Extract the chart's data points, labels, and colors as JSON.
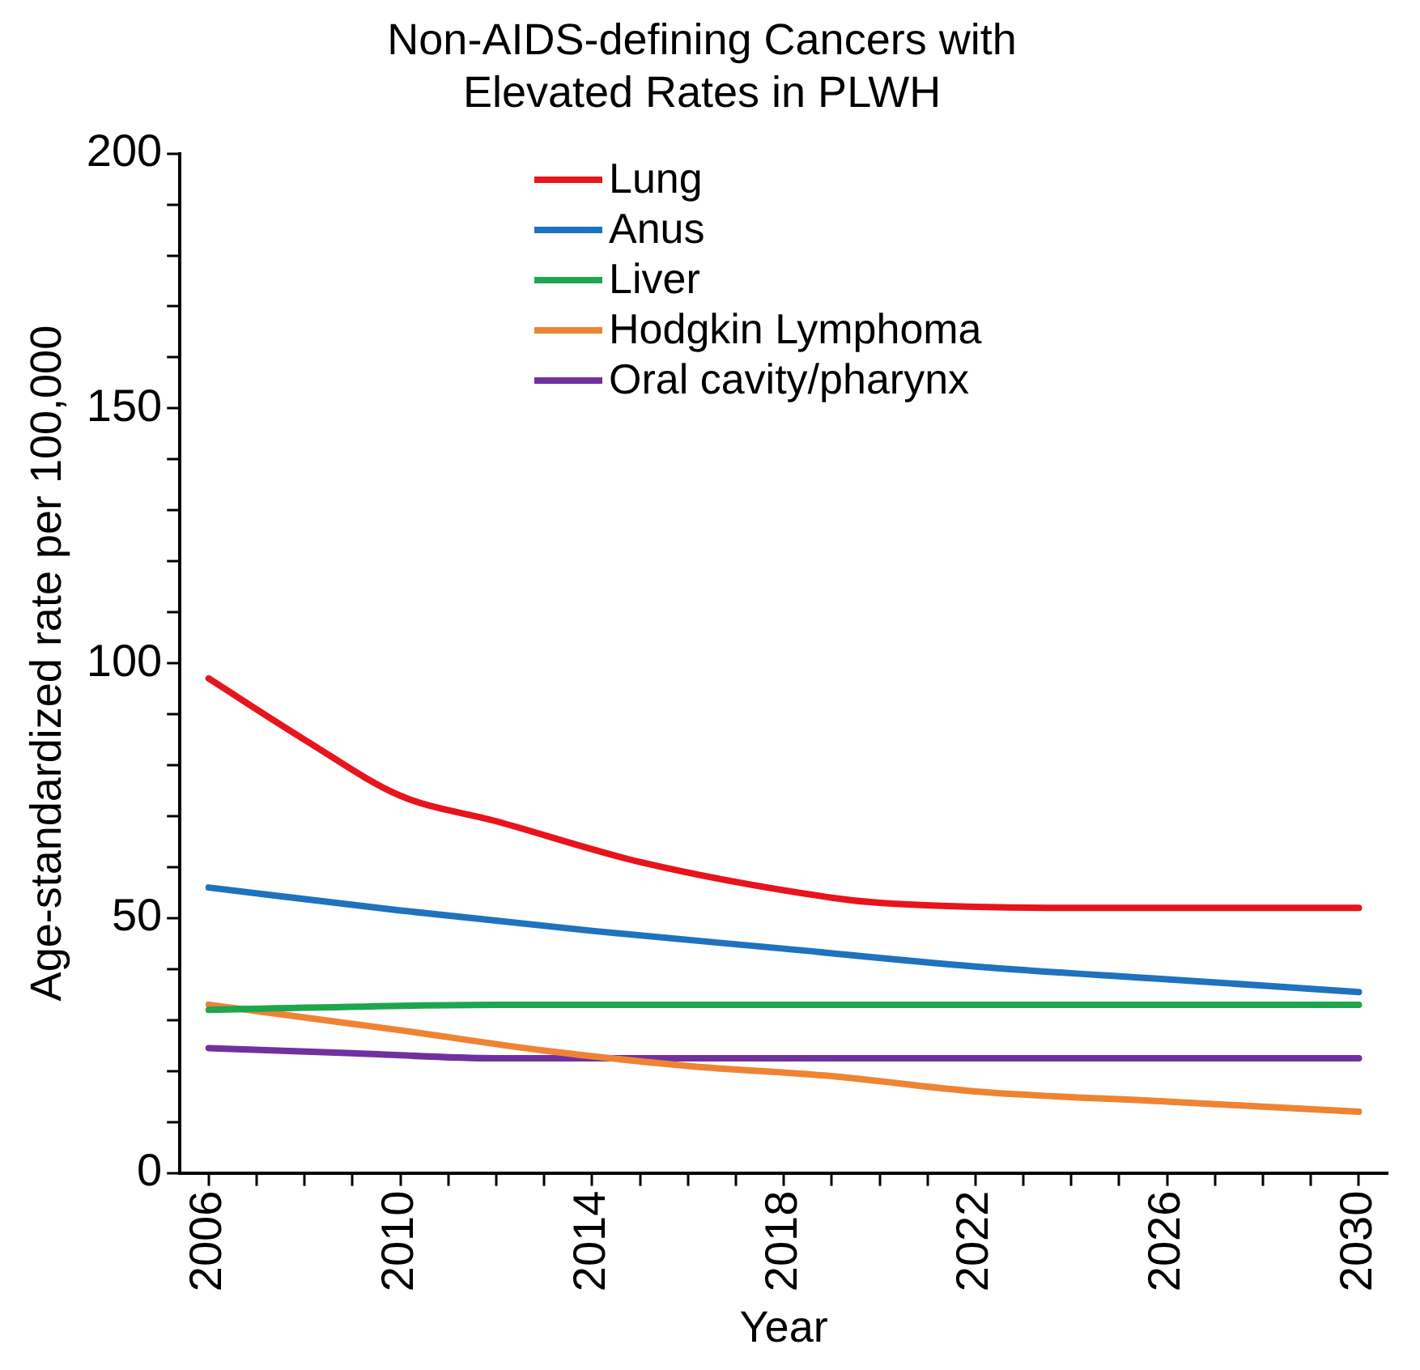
{
  "chart_data": {
    "type": "line",
    "title": [
      "Non-AIDS-defining Cancers with",
      "Elevated Rates in PLWH"
    ],
    "xlabel": "Year",
    "ylabel": "Age-standardized rate per 100,000",
    "xlim": [
      2005.4,
      2030.6
    ],
    "xticks": [
      2006,
      {
        "value": 2007,
        "label": null
      },
      {
        "value": 2008,
        "label": null
      },
      {
        "value": 2009,
        "label": null
      },
      2010,
      {
        "value": 2011,
        "label": null
      },
      {
        "value": 2012,
        "label": null
      },
      {
        "value": 2013,
        "label": null
      },
      2014,
      {
        "value": 2015,
        "label": null
      },
      {
        "value": 2016,
        "label": null
      },
      {
        "value": 2017,
        "label": null
      },
      2018,
      {
        "value": 2019,
        "label": null
      },
      {
        "value": 2020,
        "label": null
      },
      {
        "value": 2021,
        "label": null
      },
      2022,
      {
        "value": 2023,
        "label": null
      },
      {
        "value": 2024,
        "label": null
      },
      {
        "value": 2025,
        "label": null
      },
      2026,
      {
        "value": 2027,
        "label": null
      },
      {
        "value": 2028,
        "label": null
      },
      {
        "value": 2029,
        "label": null
      },
      2030
    ],
    "ylim": [
      0,
      200
    ],
    "yticks": [
      0,
      {
        "value": 10,
        "label": null
      },
      {
        "value": 20,
        "label": null
      },
      {
        "value": 30,
        "label": null
      },
      {
        "value": 40,
        "label": null
      },
      50,
      {
        "value": 60,
        "label": null
      },
      {
        "value": 70,
        "label": null
      },
      {
        "value": 80,
        "label": null
      },
      {
        "value": 90,
        "label": null
      },
      100,
      {
        "value": 110,
        "label": null
      },
      {
        "value": 120,
        "label": null
      },
      {
        "value": 130,
        "label": null
      },
      {
        "value": 140,
        "label": null
      },
      150,
      {
        "value": 160,
        "label": null
      },
      {
        "value": 170,
        "label": null
      },
      {
        "value": 180,
        "label": null
      },
      {
        "value": 190,
        "label": null
      },
      200
    ],
    "grid": false,
    "legend": "top",
    "marker": "none",
    "line_style": "solid",
    "series": [
      {
        "name": "Lung",
        "color": "#e8141c",
        "x": [
          2006,
          2008,
          2010,
          2012,
          2015,
          2019,
          2020,
          2024,
          2030
        ],
        "values": [
          97,
          85,
          74,
          69,
          61,
          54,
          53,
          52,
          52
        ]
      },
      {
        "name": "Anus",
        "color": "#1f72bd",
        "x": [
          2006,
          2010,
          2014,
          2018,
          2022,
          2026,
          2030
        ],
        "values": [
          56,
          51.5,
          47.5,
          44,
          40.5,
          38,
          35.5
        ]
      },
      {
        "name": "Liver",
        "color": "#1ea64f",
        "x": [
          2006,
          2012,
          2018,
          2030
        ],
        "values": [
          32,
          33,
          33,
          33
        ]
      },
      {
        "name": "Hodgkin Lymphoma",
        "color": "#ee8433",
        "x": [
          2006,
          2010,
          2013,
          2016,
          2019,
          2022,
          2026,
          2030
        ],
        "values": [
          33,
          28,
          24,
          21,
          19,
          16,
          14,
          12
        ]
      },
      {
        "name": "Oral cavity/pharynx",
        "color": "#7030a0",
        "x": [
          2006,
          2009,
          2012,
          2018,
          2030
        ],
        "values": [
          24.5,
          23.5,
          22.5,
          22.5,
          22.5
        ]
      }
    ]
  }
}
